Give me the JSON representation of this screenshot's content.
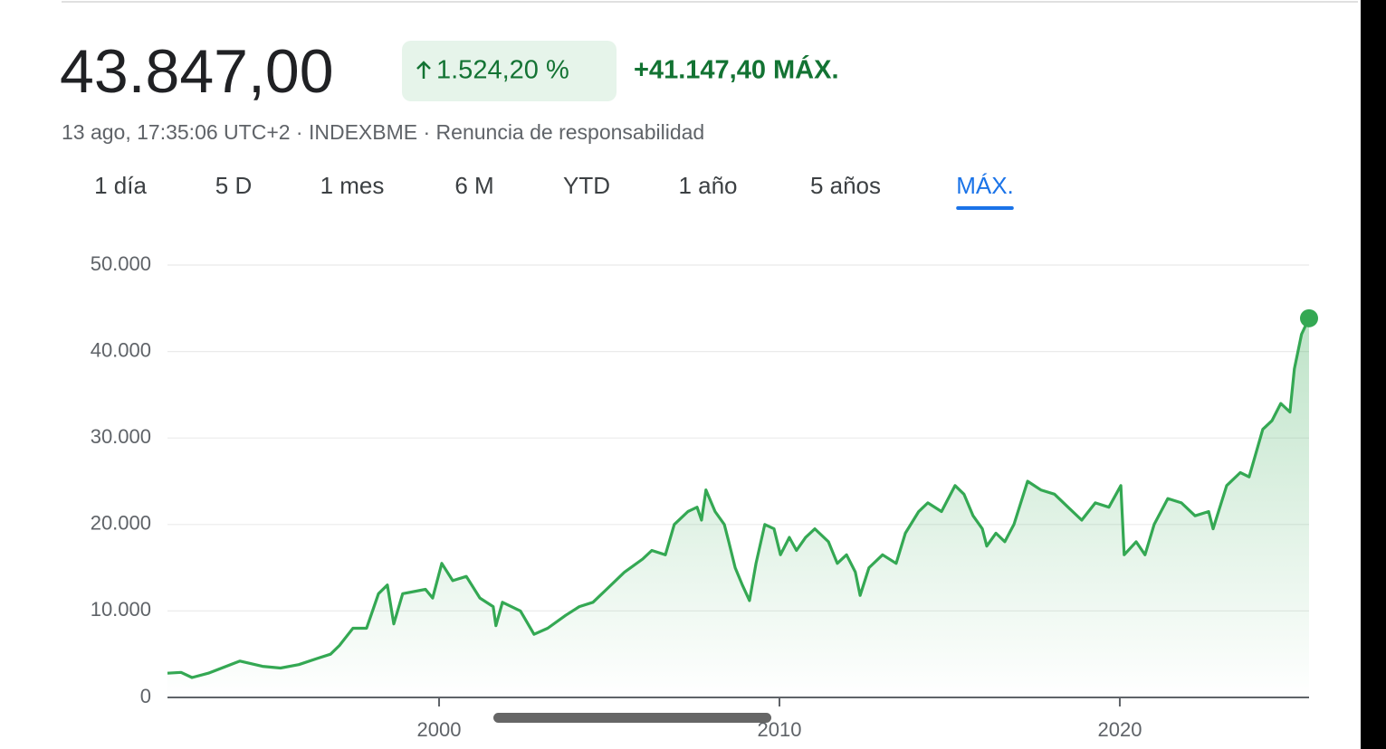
{
  "header": {
    "price": "43.847,00",
    "change_percent": "1.524,20 %",
    "change_abs": "+41.147,40 MÁX.",
    "subtitle": "13 ago, 17:35:06 UTC+2 · INDEXBME · Renuncia de responsabilidad"
  },
  "tabs": {
    "items": [
      "1 día",
      "5 D",
      "1 mes",
      "6 M",
      "YTD",
      "1 año",
      "5 años",
      "MÁX."
    ],
    "active": 7
  },
  "chart_data": {
    "type": "line",
    "color": "#34a853",
    "x": [
      1992.02,
      1992.42,
      1992.74,
      1993.22,
      1994.01,
      1994.15,
      1994.81,
      1995.34,
      1995.88,
      1996.41,
      1996.81,
      1997.07,
      1997.47,
      1997.87,
      1998.22,
      1998.48,
      1998.67,
      1998.93,
      1999.6,
      1999.81,
      2000.08,
      2000.4,
      2000.8,
      2001.2,
      2001.59,
      2001.67,
      2001.86,
      2002.39,
      2002.79,
      2003.19,
      2003.72,
      2004.12,
      2004.52,
      2004.92,
      2005.45,
      2005.98,
      2006.25,
      2006.65,
      2006.91,
      2007.31,
      2007.58,
      2007.71,
      2007.84,
      2008.11,
      2008.38,
      2008.51,
      2008.7,
      2008.91,
      2009.12,
      2009.31,
      2009.57,
      2009.84,
      2010.03,
      2010.29,
      2010.5,
      2010.77,
      2011.04,
      2011.44,
      2011.7,
      2011.97,
      2012.23,
      2012.37,
      2012.63,
      2013.03,
      2013.43,
      2013.7,
      2014.09,
      2014.36,
      2014.76,
      2015.16,
      2015.42,
      2015.69,
      2015.96,
      2016.09,
      2016.36,
      2016.62,
      2016.89,
      2017.29,
      2017.68,
      2018.08,
      2018.48,
      2018.88,
      2019.28,
      2019.68,
      2020.03,
      2020.13,
      2020.48,
      2020.74,
      2021.01,
      2021.41,
      2021.81,
      2022.21,
      2022.61,
      2022.74,
      2023.14,
      2023.54,
      2023.8,
      2024.2,
      2024.47,
      2024.73,
      2025.0,
      2025.13,
      2025.34,
      2025.56
    ],
    "values": [
      2800,
      2900,
      2300,
      2800,
      4000,
      4200,
      3600,
      3400,
      3800,
      4500,
      5000,
      6000,
      8000,
      8000,
      12000,
      13000,
      8500,
      12000,
      12500,
      11500,
      15500,
      13500,
      14000,
      11500,
      10500,
      8300,
      11000,
      10000,
      7300,
      8000,
      9500,
      10500,
      11000,
      12500,
      14500,
      16000,
      17000,
      16500,
      20000,
      21500,
      22000,
      20500,
      24000,
      21500,
      20000,
      18000,
      15000,
      13000,
      11200,
      15500,
      20000,
      19500,
      16500,
      18500,
      17000,
      18500,
      19500,
      18000,
      15500,
      16500,
      14500,
      11800,
      15000,
      16500,
      15500,
      19000,
      21500,
      22500,
      21500,
      24500,
      23500,
      21000,
      19500,
      17500,
      19000,
      18000,
      20000,
      25000,
      24000,
      23500,
      22000,
      20500,
      22500,
      22000,
      24500,
      16500,
      18000,
      16500,
      20000,
      23000,
      22500,
      21000,
      21500,
      19500,
      24500,
      26000,
      25500,
      31000,
      32000,
      34000,
      33000,
      38000,
      42000,
      43847
    ],
    "xlim": [
      1992.02,
      2025.56
    ],
    "xticks": [
      2000,
      2010,
      2020
    ],
    "ylim": [
      0,
      50000
    ],
    "yticks": [
      0,
      {
        "value": 10000,
        "label": "10.000"
      },
      {
        "value": 20000,
        "label": "20.000"
      },
      {
        "value": 30000,
        "label": "30.000"
      },
      {
        "value": 40000,
        "label": "40.000"
      },
      {
        "value": 50000,
        "label": "50.000"
      }
    ],
    "grid": true
  }
}
